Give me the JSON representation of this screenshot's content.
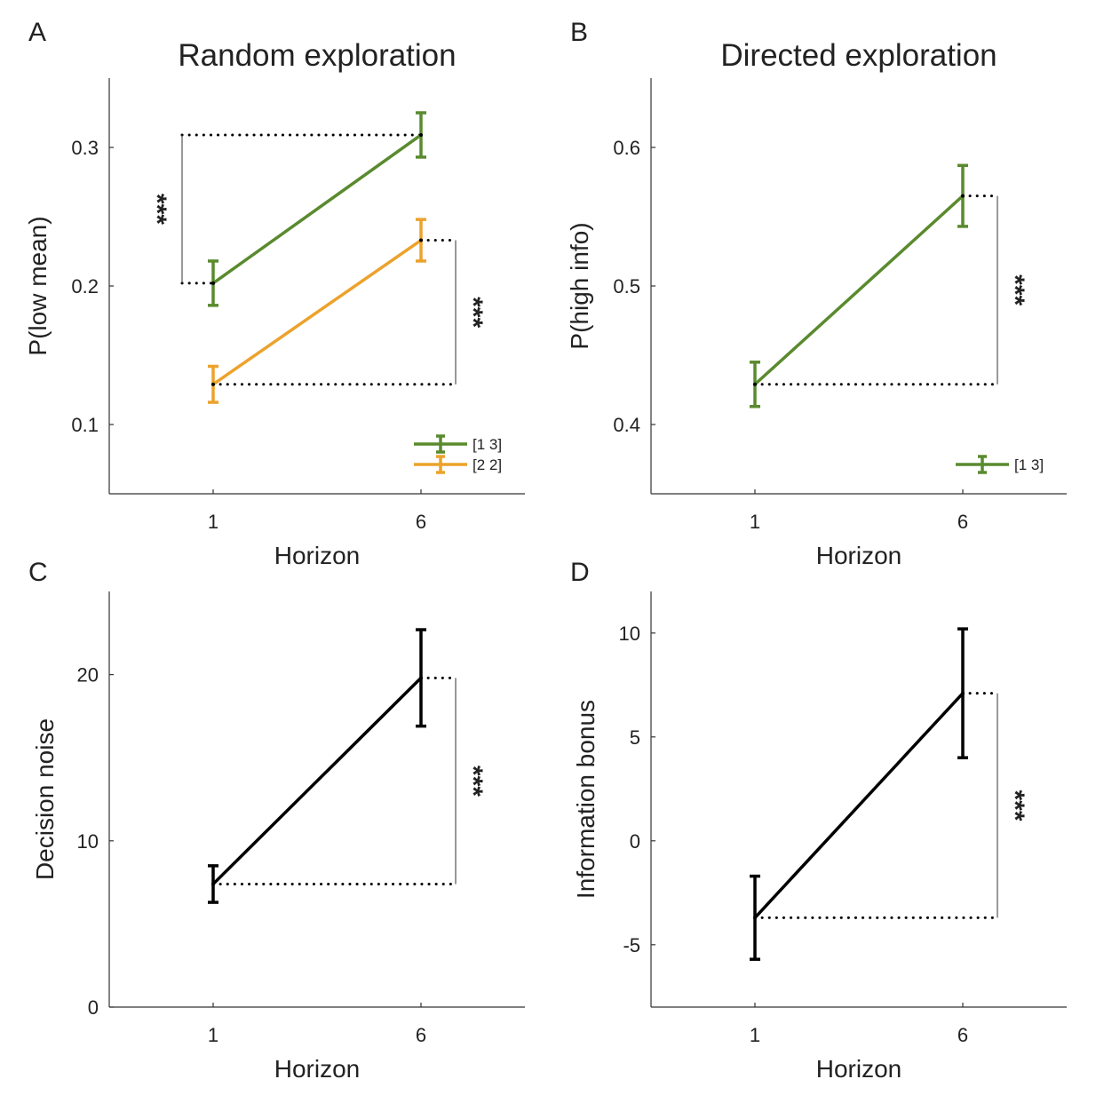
{
  "figure": {
    "panel_letters": [
      "A",
      "B",
      "C",
      "D"
    ],
    "titles": [
      "Random exploration",
      "Directed exploration"
    ]
  },
  "chart_data": [
    {
      "panel": "A",
      "type": "line",
      "title": "Random exploration",
      "xlabel": "Horizon",
      "ylabel": "P(low mean)",
      "categories": [
        "1",
        "6"
      ],
      "ylim": [
        0.05,
        0.35
      ],
      "yticks": [
        0.1,
        0.2,
        0.3
      ],
      "ytick_labels": [
        "0.1",
        "0.2",
        "0.3"
      ],
      "grid": false,
      "legend_position": "bottom-right",
      "series": [
        {
          "name": "[1 3]",
          "color": "#5a8a2e",
          "values": [
            0.202,
            0.309
          ],
          "errors": [
            0.016,
            0.016
          ]
        },
        {
          "name": "[2 2]",
          "color": "#eca22c",
          "values": [
            0.129,
            0.233
          ],
          "errors": [
            0.013,
            0.015
          ]
        }
      ],
      "annotations": [
        {
          "text": "***",
          "side": "left",
          "series": 0
        },
        {
          "text": "***",
          "side": "right",
          "series": 1
        }
      ]
    },
    {
      "panel": "B",
      "type": "line",
      "title": "Directed exploration",
      "xlabel": "Horizon",
      "ylabel": "P(high info)",
      "categories": [
        "1",
        "6"
      ],
      "ylim": [
        0.35,
        0.65
      ],
      "yticks": [
        0.4,
        0.5,
        0.6
      ],
      "ytick_labels": [
        "0.4",
        "0.5",
        "0.6"
      ],
      "grid": false,
      "legend_position": "bottom-right",
      "series": [
        {
          "name": "[1 3]",
          "color": "#5a8a2e",
          "values": [
            0.429,
            0.565
          ],
          "errors": [
            0.016,
            0.022
          ]
        }
      ],
      "annotations": [
        {
          "text": "***",
          "side": "right",
          "series": 0
        }
      ]
    },
    {
      "panel": "C",
      "type": "line",
      "title": "",
      "xlabel": "Horizon",
      "ylabel": "Decision noise",
      "categories": [
        "1",
        "6"
      ],
      "ylim": [
        0,
        25
      ],
      "yticks": [
        0,
        10,
        20
      ],
      "ytick_labels": [
        "0",
        "10",
        "20"
      ],
      "grid": false,
      "series": [
        {
          "color": "#000000",
          "values": [
            7.4,
            19.8
          ],
          "errors": [
            1.1,
            2.9
          ]
        }
      ],
      "annotations": [
        {
          "text": "***",
          "side": "right",
          "series": 0
        }
      ]
    },
    {
      "panel": "D",
      "type": "line",
      "title": "",
      "xlabel": "Horizon",
      "ylabel": "Information bonus",
      "categories": [
        "1",
        "6"
      ],
      "ylim": [
        -8,
        12
      ],
      "yticks": [
        -5,
        0,
        5,
        10
      ],
      "ytick_labels": [
        "-5",
        "0",
        "5",
        "10"
      ],
      "grid": false,
      "series": [
        {
          "color": "#000000",
          "values": [
            -3.7,
            7.1
          ],
          "errors": [
            2.0,
            3.1
          ]
        }
      ],
      "annotations": [
        {
          "text": "***",
          "side": "right",
          "series": 0
        }
      ]
    }
  ]
}
